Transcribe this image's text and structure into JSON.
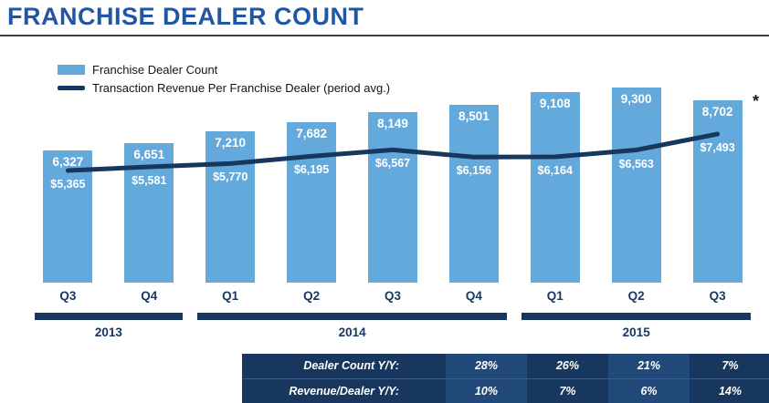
{
  "title": "FRANCHISE DEALER COUNT",
  "legend": {
    "bar_label": "Franchise Dealer Count",
    "line_label": "Transaction Revenue Per Franchise Dealer (period avg.)"
  },
  "footnote_marker": "*",
  "colors": {
    "title_blue": "#2156A5",
    "bar_blue": "#64A9DC",
    "dark_navy": "#17375E",
    "table_alt": "#21497A"
  },
  "chart_data": {
    "type": "bar",
    "categories": [
      "Q3",
      "Q4",
      "Q1",
      "Q2",
      "Q3",
      "Q4",
      "Q1",
      "Q2",
      "Q3"
    ],
    "year_groups": [
      {
        "label": "2013",
        "span": 2
      },
      {
        "label": "2014",
        "span": 4
      },
      {
        "label": "2015",
        "span": 3
      }
    ],
    "series": [
      {
        "name": "Franchise Dealer Count",
        "type": "bar",
        "values": [
          6327,
          6651,
          7210,
          7682,
          8149,
          8501,
          9108,
          9300,
          8702
        ],
        "labels": [
          "6,327",
          "6,651",
          "7,210",
          "7,682",
          "8,149",
          "8,501",
          "9,108",
          "9,300",
          "8,702"
        ]
      },
      {
        "name": "Transaction Revenue Per Franchise Dealer (period avg.)",
        "type": "line",
        "values": [
          5365,
          5581,
          5770,
          6195,
          6567,
          6156,
          6164,
          6563,
          7493
        ],
        "labels": [
          "$5,365",
          "$5,581",
          "$5,770",
          "$6,195",
          "$6,567",
          "$6,156",
          "$6,164",
          "$6,563",
          "$7,493"
        ]
      }
    ],
    "bar_axis_range": [
      0,
      9800
    ],
    "line_axis_range": [
      4500,
      9000
    ],
    "grid": false,
    "legend_position": "top-left"
  },
  "yoy_table": {
    "rows": [
      {
        "label": "Dealer Count Y/Y:",
        "values": [
          "28%",
          "26%",
          "21%",
          "7%"
        ]
      },
      {
        "label": "Revenue/Dealer Y/Y:",
        "values": [
          "10%",
          "7%",
          "6%",
          "14%"
        ]
      }
    ]
  }
}
